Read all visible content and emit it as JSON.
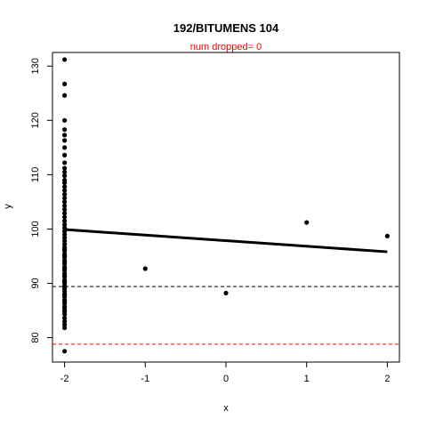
{
  "chart_data": {
    "type": "scatter",
    "title": "192/BITUMENS 104",
    "subtitle": "num dropped= 0",
    "xlabel": "x",
    "ylabel": "y",
    "xlim": [
      -2.15,
      2.15
    ],
    "ylim": [
      75.5,
      132.5
    ],
    "xticks": [
      -2,
      -1,
      0,
      1,
      2
    ],
    "yticks": [
      80,
      90,
      100,
      110,
      120,
      130
    ],
    "grid": false,
    "points": {
      "x": [
        -2,
        -2,
        -2,
        -2,
        -2,
        -2,
        -2,
        -2,
        -2,
        -2,
        -2,
        -2,
        -2,
        -2,
        -2,
        -2,
        -2,
        -2,
        -2,
        -2,
        -2,
        -2,
        -2,
        -2,
        -2,
        -2,
        -2,
        -2,
        -2,
        -2,
        -2,
        -2,
        -2,
        -2,
        -2,
        -2,
        -2,
        -2,
        -2,
        -2,
        -2,
        -2,
        -2,
        -2,
        -2,
        -2,
        -2,
        -2,
        -2,
        -2,
        -2,
        -2,
        -2,
        -2,
        -2,
        -2,
        -2,
        -2,
        -2,
        -2,
        -2,
        -2,
        -2,
        -2,
        -2,
        -2,
        -2,
        -2,
        -2,
        -2,
        -1,
        0,
        1,
        2
      ],
      "y": [
        131.2,
        126.7,
        124.6,
        120.0,
        118.3,
        117.3,
        116.3,
        115.0,
        113.6,
        112.2,
        111.2,
        110.5,
        109.8,
        109.0,
        108.5,
        107.8,
        107.1,
        106.4,
        105.7,
        105.0,
        104.3,
        103.6,
        102.9,
        102.2,
        101.5,
        100.8,
        100.2,
        99.6,
        99.0,
        98.4,
        97.8,
        97.2,
        96.6,
        96.0,
        95.4,
        94.8,
        94.2,
        93.6,
        93.0,
        92.4,
        91.8,
        91.2,
        90.6,
        90.0,
        89.5,
        89.0,
        88.5,
        88.0,
        87.5,
        86.9,
        86.3,
        85.7,
        85.0,
        84.3,
        83.6,
        83.0,
        82.4,
        81.8,
        96.3,
        95.1,
        93.9,
        92.7,
        91.5,
        90.3,
        89.1,
        87.9,
        86.7,
        85.5,
        84.8,
        77.5,
        92.7,
        88.2,
        101.2,
        98.7
      ],
      "color": "#000000"
    },
    "regression_line": {
      "x": [
        -2,
        2
      ],
      "y": [
        99.9,
        95.8
      ],
      "color": "#000000"
    },
    "hlines": [
      {
        "y": 89.4,
        "color": "#000000",
        "style": "dashed"
      },
      {
        "y": 78.8,
        "color": "#ff0000",
        "style": "dashed"
      }
    ],
    "subtitle_color": "#ff0000"
  }
}
